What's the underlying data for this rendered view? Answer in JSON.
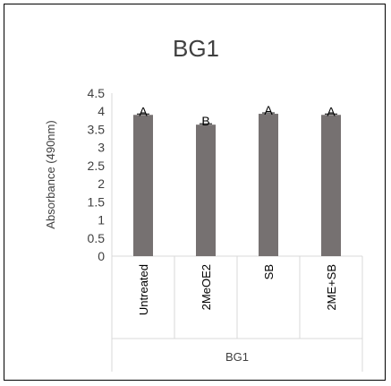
{
  "chart_data": {
    "type": "bar",
    "title": "BG1",
    "xlabel": "BG1",
    "ylabel": "Absorbance (490nm)",
    "categories": [
      "Untreated",
      "2MeOE2",
      "SB",
      "2ME+SB"
    ],
    "values": [
      3.9,
      3.63,
      3.93,
      3.9
    ],
    "data_labels": [
      "A",
      "B",
      "A",
      "A"
    ],
    "ylim": [
      0,
      4.5
    ],
    "yticks": [
      "0",
      "0.5",
      "1",
      "1.5",
      "2",
      "2.5",
      "3",
      "3.5",
      "4",
      "4.5"
    ],
    "bar_color": "#767171",
    "grid": false,
    "legend": "none"
  }
}
